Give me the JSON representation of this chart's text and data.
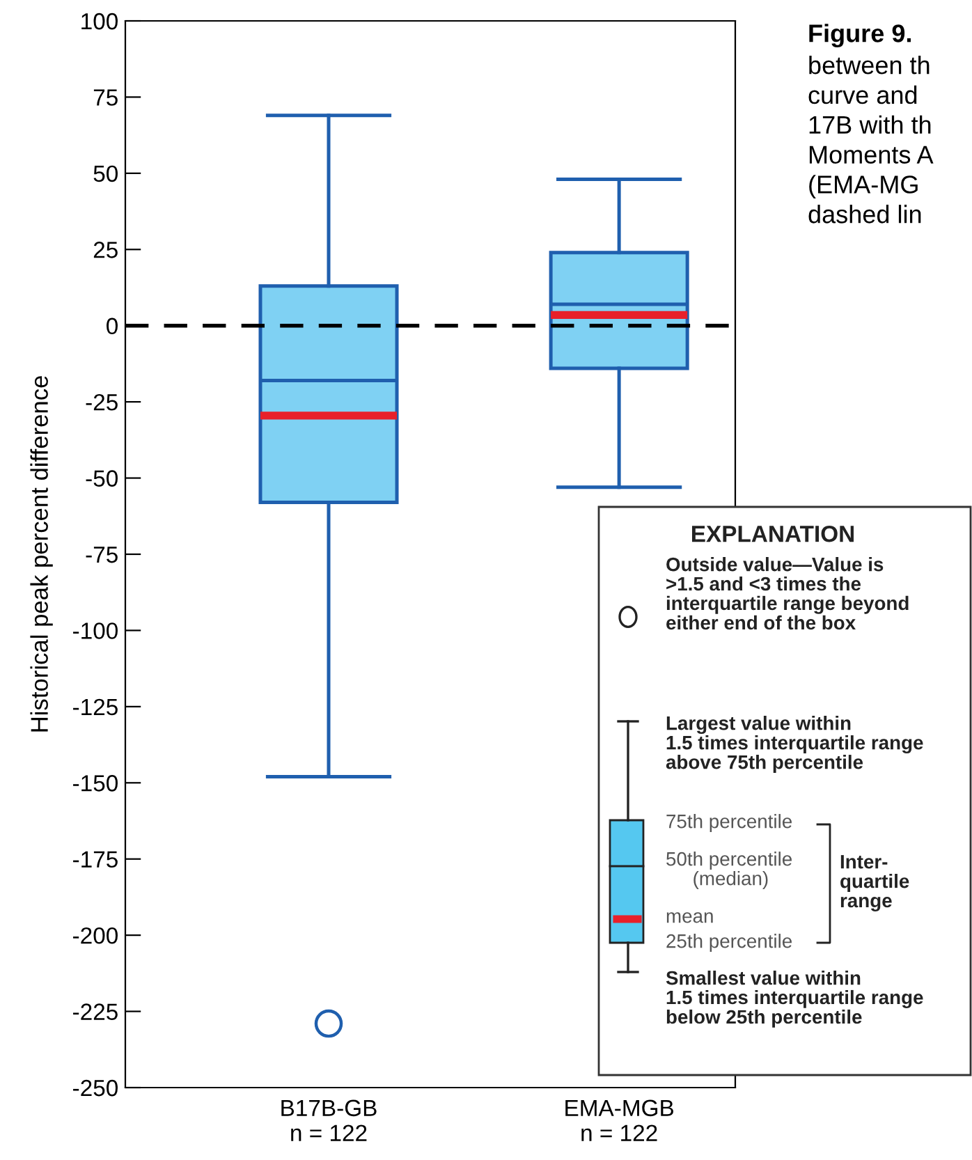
{
  "chart_data": {
    "type": "box",
    "title": "Figure 9.",
    "ylabel": "Historical peak percent difference",
    "categories": [
      "B17B-GB\nn = 122",
      "EMA-MGB\nn = 122"
    ],
    "boxes": [
      {
        "low": -148,
        "q1": -58,
        "median": -18,
        "q3": 13,
        "high": 69,
        "mean": -29.5,
        "outliers": [
          -229
        ]
      },
      {
        "low": -53,
        "q1": -14,
        "median": 7,
        "q3": 24,
        "high": 48,
        "mean": 3.5
      }
    ],
    "color": "#7fd1f3",
    "ylim": [
      -250,
      100
    ],
    "yticks": [
      -250,
      -225,
      -200,
      -175,
      -150,
      -125,
      -100,
      -75,
      -50,
      -25,
      0,
      25,
      50,
      75,
      100
    ],
    "ref_lines": [
      {
        "axis": "y",
        "value": 0,
        "color": "#000000",
        "line_style": "dashed"
      }
    ],
    "grid": false,
    "annotations": [
      "between th\ncurve and\n17B with th\nMoments A\n(EMA-MG\ndashed lin",
      "EXPLANATION",
      "Outside value—Value is\n>1.5 and <3 times the\ninterquartile range beyond\neither end of the box",
      "Largest value within\n1.5 times interquartile range\nabove 75th percentile",
      "75th percentile",
      "50th percentile\n     (median)",
      "mean",
      "25th percentile",
      "Inter-\nquartile\nrange",
      "Smallest value within\n1.5 times interquartile range\nbelow 25th percentile"
    ]
  }
}
